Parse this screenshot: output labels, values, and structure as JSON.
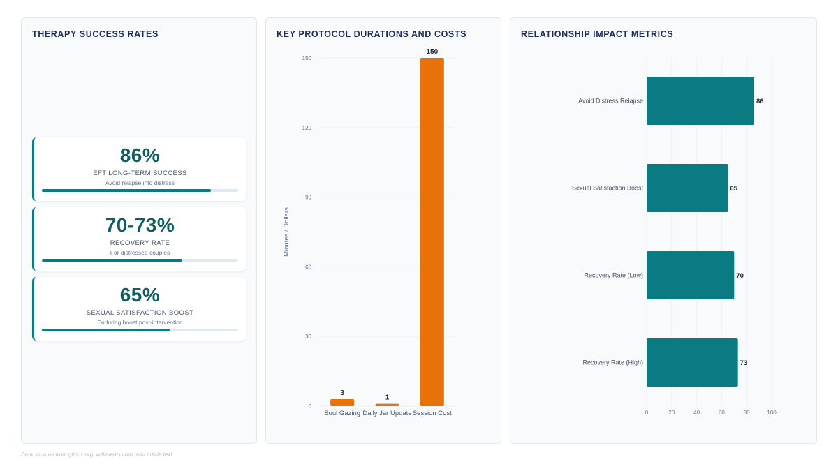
{
  "panels": {
    "success": {
      "title": "THERAPY SUCCESS RATES",
      "cards": [
        {
          "value": "86%",
          "label": "EFT LONG-TERM SUCCESS",
          "sub": "Avoid relapse into distress",
          "progress": 0.86
        },
        {
          "value": "70-73%",
          "label": "RECOVERY RATE",
          "sub": "For distressed couples",
          "progress": 0.715
        },
        {
          "value": "65%",
          "label": "SEXUAL SATISFACTION BOOST",
          "sub": "Enduring boost post-intervention",
          "progress": 0.65
        }
      ]
    },
    "protocol": {
      "title": "KEY PROTOCOL DURATIONS AND COSTS"
    },
    "impact": {
      "title": "RELATIONSHIP IMPACT METRICS"
    }
  },
  "footer": "Data sourced from gitnux.org, wifitalents.com, and article text.",
  "colors": {
    "teal": "#0a7b83",
    "orange": "#e8710a",
    "title": "#1e2a5a"
  },
  "chart_data": [
    {
      "type": "bar",
      "orientation": "vertical",
      "title": "KEY PROTOCOL DURATIONS AND COSTS",
      "categories": [
        "Soul Gazing",
        "Daily Jar Update",
        "Session Cost"
      ],
      "values": [
        3,
        1,
        150
      ],
      "ylabel": "Minutes / Dollars",
      "ylim": [
        0,
        150
      ],
      "yticks": [
        0,
        30,
        60,
        90,
        120,
        150
      ],
      "color": "#e8710a",
      "grid": true
    },
    {
      "type": "bar",
      "orientation": "horizontal",
      "title": "RELATIONSHIP IMPACT METRICS",
      "categories": [
        "Avoid Distress Relapse",
        "Sexual Satisfaction Boost",
        "Recovery Rate (Low)",
        "Recovery Rate (High)"
      ],
      "values": [
        86,
        65,
        70,
        73
      ],
      "xlim": [
        0,
        100
      ],
      "xticks": [
        0,
        20,
        40,
        60,
        80,
        100
      ],
      "color": "#0a7b83",
      "grid": true
    }
  ]
}
